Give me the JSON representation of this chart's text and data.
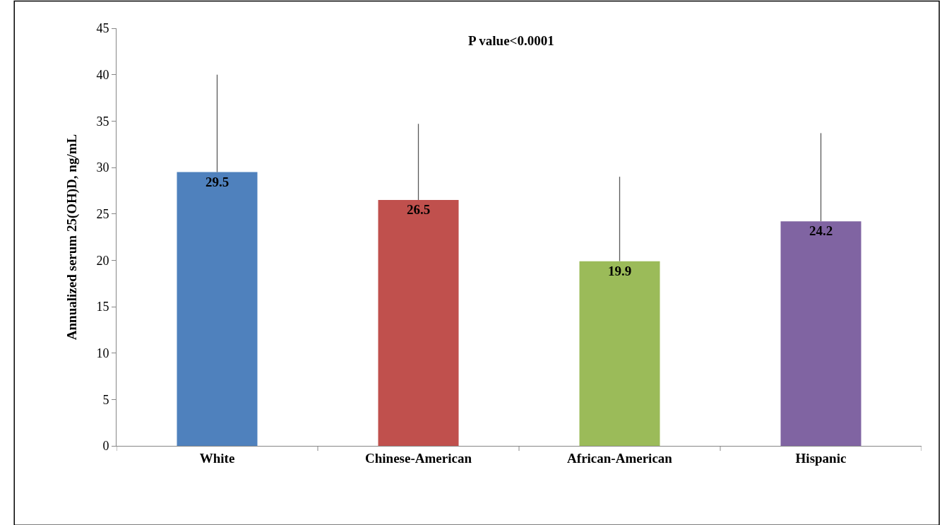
{
  "chart_data": {
    "type": "bar",
    "ylabel": "Annualized serum 25(OH)D, ng/mL",
    "annotations": [
      "P value<0.0001"
    ],
    "categories": [
      "White",
      "Chinese-American",
      "African-American",
      "Hispanic"
    ],
    "values": [
      29.5,
      26.5,
      19.9,
      24.2
    ],
    "colors": [
      "#4f81bd",
      "#c0504d",
      "#9bbb59",
      "#8064a2"
    ],
    "errors": [
      [
        29.5,
        40.0
      ],
      [
        26.5,
        34.7
      ],
      [
        19.9,
        29.0
      ],
      [
        24.2,
        33.7
      ]
    ],
    "ylim": [
      0,
      45
    ],
    "yticks": [
      0,
      5,
      10,
      15,
      20,
      25,
      30,
      35,
      40,
      45
    ],
    "data_labels": true
  }
}
